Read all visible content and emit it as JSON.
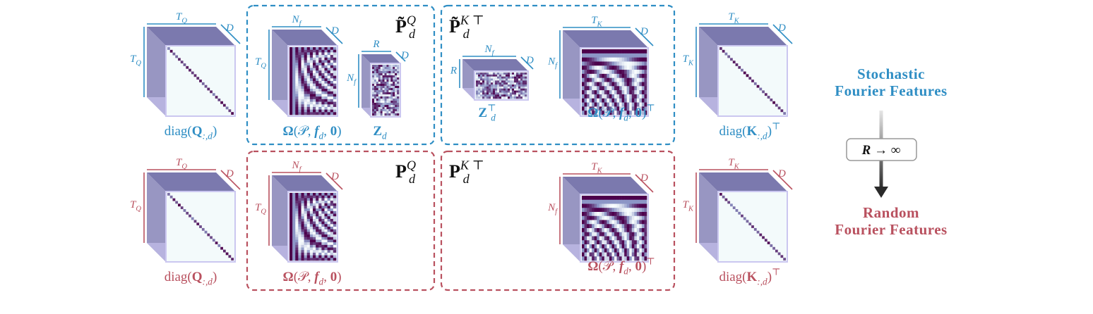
{
  "colors": {
    "stochastic": "#2f8ec4",
    "random": "#b9515f",
    "cube_top": "#7b79ae",
    "cube_left": "#9896c2",
    "cube_bottom": "#b7b3df",
    "cube_right": "#aba7d8",
    "cube_front": "#f3fafb",
    "cmap_low": "#f7fcfd",
    "cmap_mid": "#8c96c6",
    "cmap_high": "#4d004b"
  },
  "rows": [
    {
      "id": "stochastic",
      "box_titles": {
        "query": [
          {
            "t": "P̃",
            "s": "b"
          },
          {
            "t": "Q",
            "s": "supi"
          },
          {
            "t": "d",
            "s": "subback"
          }
        ],
        "key": [
          {
            "t": "P̃",
            "s": "b"
          },
          {
            "t": "K ⊤",
            "s": "supi"
          },
          {
            "t": "d",
            "s": "subback"
          }
        ]
      },
      "cubes": [
        {
          "id": "diag-q",
          "pattern": "diag",
          "top": [
            {
              "t": "T",
              "s": "i"
            },
            {
              "t": "Q",
              "s": "subi"
            }
          ],
          "left": [
            {
              "t": "T",
              "s": "i"
            },
            {
              "t": "Q",
              "s": "subi"
            }
          ],
          "depth": "D",
          "caption": [
            {
              "t": "diag("
            },
            {
              "t": "Q",
              "s": "b"
            },
            {
              "t": ":,d",
              "s": "subi"
            },
            {
              "t": ")"
            }
          ]
        },
        {
          "id": "omega-q",
          "pattern": "omega",
          "top": [
            {
              "t": "N",
              "s": "i"
            },
            {
              "t": "f",
              "s": "subi"
            }
          ],
          "left": [
            {
              "t": "T",
              "s": "i"
            },
            {
              "t": "Q",
              "s": "subi"
            }
          ],
          "depth": "D",
          "caption": [
            {
              "t": "Ω",
              "s": "b"
            },
            {
              "t": "(𝒫, "
            },
            {
              "t": "f",
              "s": "bi"
            },
            {
              "t": "d",
              "s": "subi"
            },
            {
              "t": ", "
            },
            {
              "t": "0",
              "s": "b"
            },
            {
              "t": ")"
            }
          ]
        },
        {
          "id": "z",
          "pattern": "noise",
          "top": [
            {
              "t": "R",
              "s": "i"
            }
          ],
          "left": [
            {
              "t": "N",
              "s": "i"
            },
            {
              "t": "f",
              "s": "subi"
            }
          ],
          "depth": "D",
          "caption": [
            {
              "t": "Z",
              "s": "b"
            },
            {
              "t": "d",
              "s": "subi"
            }
          ]
        },
        {
          "id": "z-t",
          "pattern": "noise",
          "top": [
            {
              "t": "N",
              "s": "i"
            },
            {
              "t": "f",
              "s": "subi"
            }
          ],
          "left": [
            {
              "t": "R",
              "s": "i"
            }
          ],
          "depth": "D",
          "caption": [
            {
              "t": "Z",
              "s": "b"
            },
            {
              "t": "⊤",
              "s": "sup"
            },
            {
              "t": "d",
              "s": "subback"
            }
          ]
        },
        {
          "id": "omega-k-t",
          "pattern": "omegaT",
          "top": [
            {
              "t": "T",
              "s": "i"
            },
            {
              "t": "K",
              "s": "subi"
            }
          ],
          "left": [
            {
              "t": "N",
              "s": "i"
            },
            {
              "t": "f",
              "s": "subi"
            }
          ],
          "depth": "D",
          "caption": [
            {
              "t": "Ω",
              "s": "b"
            },
            {
              "t": "(𝒫, "
            },
            {
              "t": "f",
              "s": "bi"
            },
            {
              "t": "d",
              "s": "subi"
            },
            {
              "t": ", "
            },
            {
              "t": "0",
              "s": "b"
            },
            {
              "t": ")"
            },
            {
              "t": "⊤",
              "s": "sup"
            }
          ]
        },
        {
          "id": "diag-k-t",
          "pattern": "diag",
          "top": [
            {
              "t": "T",
              "s": "i"
            },
            {
              "t": "K",
              "s": "subi"
            }
          ],
          "left": [
            {
              "t": "T",
              "s": "i"
            },
            {
              "t": "K",
              "s": "subi"
            }
          ],
          "depth": "D",
          "caption": [
            {
              "t": "diag("
            },
            {
              "t": "K",
              "s": "b"
            },
            {
              "t": ":,d",
              "s": "subi"
            },
            {
              "t": ")"
            },
            {
              "t": "⊤",
              "s": "sup"
            }
          ]
        }
      ]
    },
    {
      "id": "random",
      "box_titles": {
        "query": [
          {
            "t": "P",
            "s": "b"
          },
          {
            "t": "Q",
            "s": "supi"
          },
          {
            "t": "d",
            "s": "subback"
          }
        ],
        "key": [
          {
            "t": "P",
            "s": "b"
          },
          {
            "t": "K ⊤",
            "s": "supi"
          },
          {
            "t": "d",
            "s": "subback"
          }
        ]
      },
      "cubes": [
        {
          "id": "diag-q",
          "pattern": "diag",
          "top": [
            {
              "t": "T",
              "s": "i"
            },
            {
              "t": "Q",
              "s": "subi"
            }
          ],
          "left": [
            {
              "t": "T",
              "s": "i"
            },
            {
              "t": "Q",
              "s": "subi"
            }
          ],
          "depth": "D",
          "caption": [
            {
              "t": "diag("
            },
            {
              "t": "Q",
              "s": "b"
            },
            {
              "t": ":,d",
              "s": "subi"
            },
            {
              "t": ")"
            }
          ]
        },
        {
          "id": "omega-q",
          "pattern": "omega",
          "top": [
            {
              "t": "N",
              "s": "i"
            },
            {
              "t": "f",
              "s": "subi"
            }
          ],
          "left": [
            {
              "t": "T",
              "s": "i"
            },
            {
              "t": "Q",
              "s": "subi"
            }
          ],
          "depth": "D",
          "caption": [
            {
              "t": "Ω",
              "s": "b"
            },
            {
              "t": "(𝒫, "
            },
            {
              "t": "f",
              "s": "bi"
            },
            {
              "t": "d",
              "s": "subi"
            },
            {
              "t": ", "
            },
            {
              "t": "0",
              "s": "b"
            },
            {
              "t": ")"
            }
          ]
        },
        {
          "id": "omega-k-t",
          "pattern": "omegaT",
          "top": [
            {
              "t": "T",
              "s": "i"
            },
            {
              "t": "K",
              "s": "subi"
            }
          ],
          "left": [
            {
              "t": "N",
              "s": "i"
            },
            {
              "t": "f",
              "s": "subi"
            }
          ],
          "depth": "D",
          "caption": [
            {
              "t": "Ω",
              "s": "b"
            },
            {
              "t": "(𝒫, "
            },
            {
              "t": "f",
              "s": "bi"
            },
            {
              "t": "d",
              "s": "subi"
            },
            {
              "t": ", "
            },
            {
              "t": "0",
              "s": "b"
            },
            {
              "t": ")"
            },
            {
              "t": "⊤",
              "s": "sup"
            }
          ]
        },
        {
          "id": "diag-k-t",
          "pattern": "diag",
          "top": [
            {
              "t": "T",
              "s": "i"
            },
            {
              "t": "K",
              "s": "subi"
            }
          ],
          "left": [
            {
              "t": "T",
              "s": "i"
            },
            {
              "t": "K",
              "s": "subi"
            }
          ],
          "depth": "D",
          "caption": [
            {
              "t": "diag("
            },
            {
              "t": "K",
              "s": "b"
            },
            {
              "t": ":,d",
              "s": "subi"
            },
            {
              "t": ")"
            },
            {
              "t": "⊤",
              "s": "sup"
            }
          ]
        }
      ]
    }
  ],
  "legend": {
    "stochastic_line1": "Stochastic",
    "stochastic_line2": "Fourier Features",
    "random_line1": "Random",
    "random_line2": "Fourier Features",
    "arrow_label": [
      {
        "t": "R",
        "s": "bi"
      },
      {
        "t": " → ∞",
        "s": "b"
      }
    ],
    "arrow_icon": "down-arrow-icon"
  }
}
